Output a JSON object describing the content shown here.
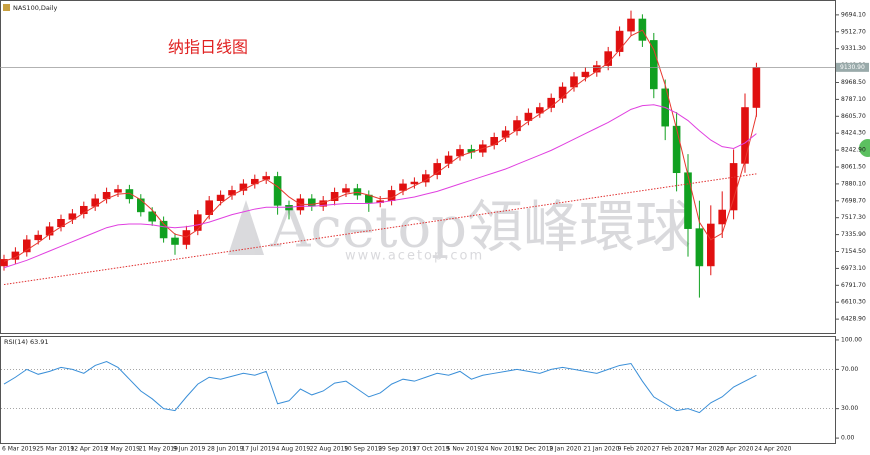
{
  "chart_data": [
    {
      "type": "candlestick",
      "title": "NAS100,Daily",
      "annotation": "纳指日线图",
      "watermark": "Acetop領峰環球",
      "watermark_url": "www.acetop.com",
      "categories": [
        "6 Mar 2019",
        null,
        null,
        "25 Mar 2019",
        null,
        null,
        "12 Apr 2019",
        null,
        null,
        "2 May 2019",
        null,
        null,
        "21 May 2019",
        null,
        null,
        "9 Jun 2019",
        null,
        null,
        "28 Jun 2019",
        null,
        null,
        "17 Jul 2019",
        null,
        null,
        "4 Aug 2019",
        null,
        null,
        "22 Aug 2019",
        null,
        null,
        "10 Sep 2019",
        null,
        null,
        "29 Sep 2019",
        null,
        null,
        "17 Oct 2019",
        null,
        null,
        "5 Nov 2019",
        null,
        null,
        "24 Nov 2019",
        null,
        null,
        "12 Dec 2019",
        null,
        null,
        "2 Jan 2020",
        null,
        null,
        "21 Jan 2020",
        null,
        null,
        "9 Feb 2020",
        null,
        null,
        "27 Feb 2020",
        null,
        null,
        "17 Mar 2020",
        null,
        null,
        "5 Apr 2020",
        null,
        null,
        "24 Apr 2020"
      ],
      "open": [
        7000,
        7070,
        7150,
        7280,
        7330,
        7420,
        7500,
        7560,
        7640,
        7720,
        7790,
        7820,
        7720,
        7580,
        7480,
        7300,
        7230,
        7380,
        7550,
        7700,
        7760,
        7810,
        7880,
        7930,
        7960,
        7650,
        7600,
        7720,
        7640,
        7700,
        7790,
        7830,
        7760,
        7680,
        7700,
        7810,
        7880,
        7900,
        7980,
        8100,
        8180,
        8250,
        8220,
        8300,
        8380,
        8450,
        8560,
        8640,
        8700,
        8800,
        8920,
        9030,
        9080,
        9150,
        9300,
        9520,
        9650,
        9420,
        8900,
        8500,
        8000,
        7400,
        7000,
        7450,
        7600,
        8100,
        8700
      ],
      "high": [
        7120,
        7200,
        7330,
        7380,
        7470,
        7550,
        7610,
        7690,
        7770,
        7840,
        7870,
        7870,
        7770,
        7630,
        7530,
        7350,
        7430,
        7600,
        7750,
        7810,
        7860,
        7930,
        7980,
        8010,
        8010,
        7700,
        7770,
        7770,
        7750,
        7840,
        7880,
        7880,
        7810,
        7750,
        7860,
        7930,
        7950,
        8030,
        8150,
        8230,
        8300,
        8300,
        8350,
        8430,
        8500,
        8610,
        8690,
        8750,
        8850,
        8970,
        9080,
        9130,
        9200,
        9350,
        9570,
        9740,
        9700,
        9500,
        9000,
        8650,
        8200,
        7700,
        7650,
        7800,
        8250,
        8850,
        9180
      ],
      "low": [
        6950,
        7020,
        7100,
        7230,
        7280,
        7370,
        7450,
        7510,
        7590,
        7670,
        7740,
        7670,
        7530,
        7430,
        7250,
        7120,
        7180,
        7330,
        7500,
        7650,
        7710,
        7760,
        7830,
        7880,
        7550,
        7500,
        7550,
        7590,
        7590,
        7650,
        7740,
        7710,
        7580,
        7630,
        7650,
        7760,
        7830,
        7850,
        7930,
        8050,
        8130,
        8150,
        8170,
        8250,
        8330,
        8400,
        8510,
        8590,
        8650,
        8750,
        8870,
        8980,
        9030,
        9100,
        9250,
        9470,
        9350,
        8800,
        8350,
        7800,
        7100,
        6660,
        6900,
        7300,
        7500,
        8000,
        8600
      ],
      "close": [
        7070,
        7150,
        7280,
        7330,
        7420,
        7500,
        7560,
        7640,
        7720,
        7790,
        7820,
        7720,
        7580,
        7480,
        7300,
        7230,
        7380,
        7550,
        7700,
        7760,
        7810,
        7880,
        7930,
        7960,
        7650,
        7600,
        7720,
        7640,
        7700,
        7790,
        7830,
        7760,
        7680,
        7700,
        7810,
        7880,
        7900,
        7980,
        8100,
        8180,
        8250,
        8220,
        8300,
        8380,
        8450,
        8560,
        8640,
        8700,
        8800,
        8920,
        9030,
        9080,
        9150,
        9300,
        9520,
        9650,
        9420,
        8900,
        8500,
        8000,
        7400,
        7000,
        7450,
        7600,
        8100,
        8700,
        9130.9
      ],
      "up_color": "#e01010",
      "down_color": "#10a020",
      "lines": [
        {
          "color": "#e8382f",
          "style": "solid",
          "values": [
            7050,
            7090,
            7170,
            7250,
            7340,
            7420,
            7490,
            7570,
            7640,
            7720,
            7770,
            7780,
            7710,
            7600,
            7450,
            7340,
            7310,
            7390,
            7540,
            7670,
            7760,
            7820,
            7880,
            7930,
            7850,
            7740,
            7660,
            7660,
            7680,
            7720,
            7770,
            7790,
            7760,
            7720,
            7730,
            7800,
            7860,
            7920,
            8000,
            8090,
            8180,
            8220,
            8260,
            8300,
            8380,
            8460,
            8550,
            8630,
            8710,
            8810,
            8920,
            9010,
            9090,
            9180,
            9320,
            9470,
            9530,
            9320,
            8940,
            8470,
            7970,
            7470,
            7280,
            7350,
            7720,
            8130,
            8620
          ]
        },
        {
          "color": "#e040e0",
          "style": "solid",
          "values": [
            6980,
            7020,
            7060,
            7110,
            7160,
            7210,
            7260,
            7310,
            7360,
            7410,
            7440,
            7450,
            7450,
            7440,
            7420,
            7410,
            7420,
            7440,
            7470,
            7510,
            7550,
            7580,
            7610,
            7630,
            7630,
            7630,
            7640,
            7640,
            7650,
            7660,
            7670,
            7670,
            7670,
            7680,
            7700,
            7720,
            7740,
            7770,
            7800,
            7840,
            7880,
            7920,
            7960,
            8000,
            8040,
            8090,
            8140,
            8190,
            8240,
            8300,
            8360,
            8420,
            8480,
            8540,
            8610,
            8680,
            8720,
            8730,
            8700,
            8640,
            8560,
            8450,
            8350,
            8280,
            8260,
            8320,
            8420
          ]
        },
        {
          "color": "#e03030",
          "style": "dotted",
          "values": [
            6800,
            6818,
            6836,
            6854,
            6872,
            6890,
            6908,
            6926,
            6944,
            6962,
            6980,
            6998,
            7016,
            7034,
            7052,
            7070,
            7088,
            7106,
            7124,
            7142,
            7160,
            7178,
            7196,
            7214,
            7232,
            7250,
            7268,
            7286,
            7304,
            7322,
            7340,
            7358,
            7376,
            7394,
            7412,
            7430,
            7448,
            7466,
            7484,
            7502,
            7520,
            7538,
            7556,
            7574,
            7592,
            7610,
            7628,
            7646,
            7664,
            7682,
            7700,
            7718,
            7736,
            7754,
            7772,
            7790,
            7808,
            7826,
            7844,
            7862,
            7880,
            7898,
            7916,
            7934,
            7952,
            7970,
            7988
          ]
        }
      ],
      "last_price": {
        "value": 9130.9,
        "label": "9130.90"
      },
      "ylim": [
        6280,
        9843
      ],
      "yticks": [
        {
          "value": 9694.1,
          "label": "9694.10"
        },
        {
          "value": 9512.7,
          "label": "9512.70"
        },
        {
          "value": 9331.3,
          "label": "9331.30"
        },
        {
          "value": 9149.9,
          "label": "9149.90"
        },
        {
          "value": 8968.5,
          "label": "8968.50"
        },
        {
          "value": 8787.1,
          "label": "8787.10"
        },
        {
          "value": 8605.7,
          "label": "8605.70"
        },
        {
          "value": 8424.3,
          "label": "8424.30"
        },
        {
          "value": 8242.9,
          "label": "8242.90"
        },
        {
          "value": 8061.5,
          "label": "8061.50"
        },
        {
          "value": 7880.1,
          "label": "7880.10"
        },
        {
          "value": 7698.7,
          "label": "7698.70"
        },
        {
          "value": 7517.3,
          "label": "7517.30"
        },
        {
          "value": 7335.9,
          "label": "7335.90"
        },
        {
          "value": 7154.5,
          "label": "7154.50"
        },
        {
          "value": 6973.1,
          "label": "6973.10"
        },
        {
          "value": 6791.7,
          "label": "6791.70"
        },
        {
          "value": 6610.3,
          "label": "6610.30"
        },
        {
          "value": 6428.9,
          "label": "6428.90"
        }
      ],
      "grid": false
    },
    {
      "type": "line",
      "title": "RSI(14) 63.91",
      "series": [
        {
          "color": "#3a8fd8",
          "values": [
            55,
            62,
            70,
            65,
            68,
            72,
            70,
            66,
            74,
            78,
            72,
            60,
            48,
            40,
            30,
            28,
            42,
            55,
            62,
            60,
            63,
            66,
            64,
            68,
            35,
            38,
            50,
            44,
            48,
            56,
            58,
            50,
            42,
            46,
            55,
            60,
            58,
            62,
            66,
            64,
            68,
            60,
            64,
            66,
            68,
            70,
            68,
            66,
            70,
            72,
            70,
            68,
            66,
            70,
            74,
            76,
            58,
            42,
            35,
            28,
            30,
            26,
            36,
            42,
            52,
            58,
            63.91
          ]
        }
      ],
      "levels": [
        70,
        30
      ],
      "ylim": [
        -5,
        103
      ],
      "yticks": [
        {
          "value": 100,
          "label": "100.00"
        },
        {
          "value": 70,
          "label": "70.00"
        },
        {
          "value": 30,
          "label": "30.00"
        },
        {
          "value": 0,
          "label": "0.00"
        }
      ],
      "grid": false
    }
  ]
}
